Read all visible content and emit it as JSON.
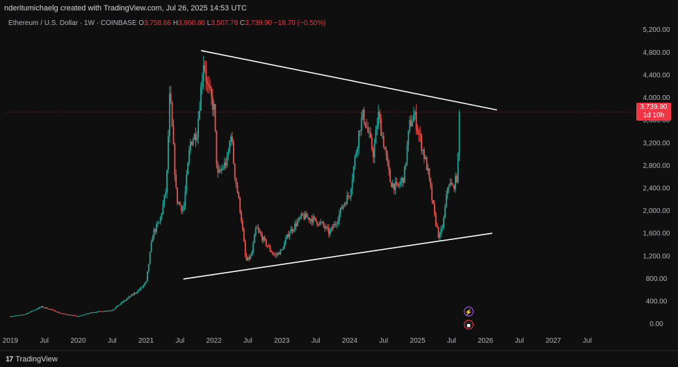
{
  "header": {
    "attribution": "nderitumichaelg created with TradingView.com, Jul 26, 2025 14:53 UTC"
  },
  "legend": {
    "symbol": "Ethereum / U.S. Dollar · 1W · COINBASE",
    "o_label": "O",
    "o_value": "3,758.66",
    "h_label": "H",
    "h_value": "3,860.80",
    "l_label": "L",
    "l_value": "3,507.78",
    "c_label": "C",
    "c_value": "3,739.90",
    "change": "−18.70 (−0.50%)"
  },
  "price_tag": {
    "price": "3,739.90",
    "countdown": "1d 10h"
  },
  "footer": {
    "brand": "TradingView",
    "logo_glyph": "17"
  },
  "icons": {
    "events": "lightning-icon",
    "flag": "us-flag-icon"
  },
  "colors": {
    "background": "#0f0f0f",
    "up": "#26a69a",
    "down": "#ef5350",
    "trendline": "#ffffff",
    "price_line": "#f23645",
    "axis_text": "#b2b5be"
  },
  "chart_data": {
    "type": "candlestick",
    "title": "Ethereum / U.S. Dollar · 1W · COINBASE",
    "y_ticks": [
      "5,200.00",
      "4,800.00",
      "4,400.00",
      "4,000.00",
      "3,600.00",
      "3,200.00",
      "2,800.00",
      "2,400.00",
      "2,000.00",
      "1,600.00",
      "1,200.00",
      "800.00",
      "400.00",
      "0.00"
    ],
    "y_tick_values": [
      5200,
      4800,
      4400,
      4000,
      3600,
      3200,
      2800,
      2400,
      2000,
      1600,
      1200,
      800,
      400,
      0
    ],
    "ylim": [
      -140,
      5430
    ],
    "x_ticks": [
      "2019",
      "Jul",
      "2020",
      "Jul",
      "2021",
      "Jul",
      "2022",
      "Jul",
      "2023",
      "Jul",
      "2024",
      "Jul",
      "2025",
      "Jul",
      "2026",
      "Jul",
      "2027",
      "Jul"
    ],
    "x_tick_values": [
      2019.0,
      2019.5,
      2020.0,
      2020.5,
      2021.0,
      2021.5,
      2022.0,
      2022.5,
      2023.0,
      2023.5,
      2024.0,
      2024.5,
      2025.0,
      2025.5,
      2026.0,
      2026.5,
      2027.0,
      2027.5
    ],
    "xlim": [
      2018.93,
      2028.15
    ],
    "grid": false,
    "last_price": 3739.9,
    "price_anchors": [
      [
        2019.0,
        130
      ],
      [
        2019.2,
        160
      ],
      [
        2019.46,
        300
      ],
      [
        2019.55,
        270
      ],
      [
        2019.75,
        180
      ],
      [
        2020.0,
        130
      ],
      [
        2020.2,
        200
      ],
      [
        2020.5,
        240
      ],
      [
        2020.65,
        380
      ],
      [
        2020.9,
        600
      ],
      [
        2021.0,
        730
      ],
      [
        2021.1,
        1600
      ],
      [
        2021.2,
        1800
      ],
      [
        2021.3,
        2400
      ],
      [
        2021.35,
        4100
      ],
      [
        2021.45,
        2200
      ],
      [
        2021.55,
        2000
      ],
      [
        2021.65,
        3200
      ],
      [
        2021.75,
        3400
      ],
      [
        2021.85,
        4700
      ],
      [
        2021.9,
        4200
      ],
      [
        2022.0,
        3800
      ],
      [
        2022.05,
        2600
      ],
      [
        2022.2,
        2900
      ],
      [
        2022.25,
        3400
      ],
      [
        2022.3,
        2700
      ],
      [
        2022.4,
        1900
      ],
      [
        2022.47,
        1100
      ],
      [
        2022.55,
        1200
      ],
      [
        2022.62,
        1700
      ],
      [
        2022.72,
        1500
      ],
      [
        2022.83,
        1300
      ],
      [
        2022.9,
        1200
      ],
      [
        2023.0,
        1300
      ],
      [
        2023.1,
        1600
      ],
      [
        2023.2,
        1750
      ],
      [
        2023.3,
        1900
      ],
      [
        2023.45,
        1850
      ],
      [
        2023.6,
        1750
      ],
      [
        2023.7,
        1600
      ],
      [
        2023.8,
        1800
      ],
      [
        2023.9,
        2100
      ],
      [
        2024.0,
        2300
      ],
      [
        2024.15,
        3500
      ],
      [
        2024.2,
        3700
      ],
      [
        2024.35,
        3000
      ],
      [
        2024.42,
        3700
      ],
      [
        2024.5,
        3200
      ],
      [
        2024.6,
        2500
      ],
      [
        2024.7,
        2400
      ],
      [
        2024.8,
        2600
      ],
      [
        2024.88,
        3500
      ],
      [
        2024.95,
        3700
      ],
      [
        2025.05,
        3200
      ],
      [
        2025.15,
        2700
      ],
      [
        2025.25,
        1900
      ],
      [
        2025.32,
        1500
      ],
      [
        2025.38,
        1800
      ],
      [
        2025.45,
        2500
      ],
      [
        2025.52,
        2400
      ],
      [
        2025.58,
        2600
      ],
      [
        2025.6,
        3000
      ],
      [
        2025.62,
        3700
      ]
    ],
    "trendlines": [
      {
        "name": "upper",
        "from": [
          2021.81,
          4830
        ],
        "to": [
          2026.17,
          3780
        ]
      },
      {
        "name": "lower",
        "from": [
          2021.55,
          790
        ],
        "to": [
          2026.1,
          1600
        ]
      }
    ]
  }
}
